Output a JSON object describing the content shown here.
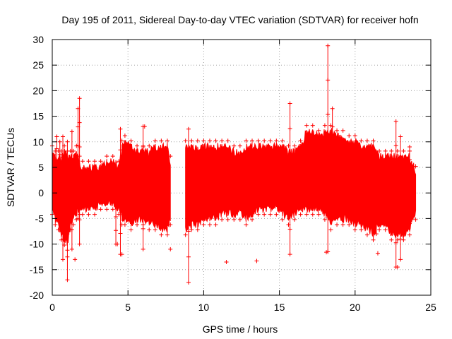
{
  "chart_data": {
    "type": "scatter",
    "title": "Day 195 of 2011, Sidereal Day-to-day VTEC variation (SDTVAR) for receiver hofn",
    "xlabel": "GPS time / hours",
    "ylabel": "SDTVAR / TECUs",
    "xlim": [
      0,
      25
    ],
    "ylim": [
      -20,
      30
    ],
    "xticks": [
      0,
      5,
      10,
      15,
      20,
      25
    ],
    "yticks": [
      -20,
      -15,
      -10,
      -5,
      0,
      5,
      10,
      15,
      20,
      25,
      30
    ],
    "grid": true,
    "series_color": "#ff0000",
    "series": [
      {
        "name": "SDTVAR",
        "note": "dense per-epoch envelope; each band is [x, y_low, y_high]",
        "bands": [
          [
            0.0,
            -3,
            8
          ],
          [
            0.2,
            -5,
            7
          ],
          [
            0.4,
            -6,
            7
          ],
          [
            0.6,
            -8,
            7
          ],
          [
            0.8,
            -9,
            8
          ],
          [
            1.0,
            -10,
            7
          ],
          [
            1.2,
            -6,
            7
          ],
          [
            1.4,
            -5,
            7
          ],
          [
            1.6,
            -4,
            8
          ],
          [
            1.8,
            -3,
            6
          ],
          [
            2.0,
            -3,
            5
          ],
          [
            2.4,
            -3,
            5
          ],
          [
            2.8,
            -3,
            5
          ],
          [
            3.2,
            -2,
            5
          ],
          [
            3.6,
            -2,
            6
          ],
          [
            4.0,
            -2,
            6
          ],
          [
            4.4,
            -3,
            5
          ],
          [
            4.6,
            -5,
            9
          ],
          [
            4.8,
            -5,
            10
          ],
          [
            5.2,
            -6,
            9
          ],
          [
            5.6,
            -5,
            8
          ],
          [
            6.0,
            -5,
            8
          ],
          [
            6.4,
            -6,
            8
          ],
          [
            6.8,
            -6,
            9
          ],
          [
            7.2,
            -7,
            9
          ],
          [
            7.6,
            -7,
            9
          ],
          [
            7.8,
            -5,
            6
          ],
          [
            8.8,
            -7,
            9
          ],
          [
            9.2,
            -6,
            9
          ],
          [
            9.6,
            -6,
            9
          ],
          [
            10.0,
            -5,
            9
          ],
          [
            10.4,
            -5,
            9
          ],
          [
            10.8,
            -5,
            9
          ],
          [
            11.2,
            -4,
            9
          ],
          [
            11.6,
            -4,
            9
          ],
          [
            12.0,
            -4,
            8
          ],
          [
            12.4,
            -4,
            8
          ],
          [
            12.8,
            -5,
            9
          ],
          [
            13.2,
            -4,
            9
          ],
          [
            13.6,
            -3,
            9
          ],
          [
            14.0,
            -3,
            9
          ],
          [
            14.4,
            -3,
            9
          ],
          [
            14.8,
            -3,
            9
          ],
          [
            15.2,
            -4,
            9
          ],
          [
            15.6,
            -5,
            8
          ],
          [
            16.0,
            -4,
            8
          ],
          [
            16.4,
            -3,
            9
          ],
          [
            16.8,
            -3,
            12
          ],
          [
            17.2,
            -3,
            12
          ],
          [
            17.6,
            -3,
            11
          ],
          [
            18.0,
            -4,
            12
          ],
          [
            18.4,
            -6,
            12
          ],
          [
            18.8,
            -5,
            11
          ],
          [
            19.2,
            -5,
            11
          ],
          [
            19.6,
            -5,
            10
          ],
          [
            20.0,
            -6,
            10
          ],
          [
            20.4,
            -6,
            9
          ],
          [
            20.8,
            -7,
            9
          ],
          [
            21.2,
            -8,
            9
          ],
          [
            21.6,
            -6,
            7
          ],
          [
            22.0,
            -6,
            7
          ],
          [
            22.4,
            -8,
            7
          ],
          [
            22.8,
            -8,
            7
          ],
          [
            23.2,
            -8,
            7
          ],
          [
            23.6,
            -7,
            7
          ],
          [
            24.0,
            -4,
            4
          ]
        ],
        "spikes": [
          [
            0.3,
            -3,
            11
          ],
          [
            0.5,
            -5,
            10
          ],
          [
            0.7,
            -13,
            11
          ],
          [
            1.0,
            -17,
            10
          ],
          [
            1.3,
            -11,
            12
          ],
          [
            1.8,
            -10,
            18.5
          ],
          [
            1.7,
            -5,
            16.5
          ],
          [
            4.2,
            -10,
            6
          ],
          [
            4.5,
            -12,
            12.5
          ],
          [
            6.0,
            -11,
            13
          ],
          [
            9.0,
            -17.5,
            12.5
          ],
          [
            15.7,
            -12,
            17.5
          ],
          [
            18.2,
            -11.5,
            28.8
          ],
          [
            18.5,
            -5,
            16.5
          ],
          [
            21.4,
            -8,
            8
          ],
          [
            22.7,
            -14.5,
            14
          ],
          [
            23.0,
            -13,
            11
          ],
          [
            23.6,
            -6,
            9
          ]
        ],
        "outliers": [
          [
            0.3,
            11
          ],
          [
            1.5,
            -13
          ],
          [
            4.3,
            -10
          ],
          [
            4.6,
            -12
          ],
          [
            6.1,
            13
          ],
          [
            7.8,
            -11
          ],
          [
            11.5,
            -13.5
          ],
          [
            13.5,
            -13.3
          ],
          [
            18.1,
            -11.6
          ],
          [
            21.5,
            -11.8
          ],
          [
            22.8,
            -14.5
          ]
        ]
      }
    ]
  }
}
